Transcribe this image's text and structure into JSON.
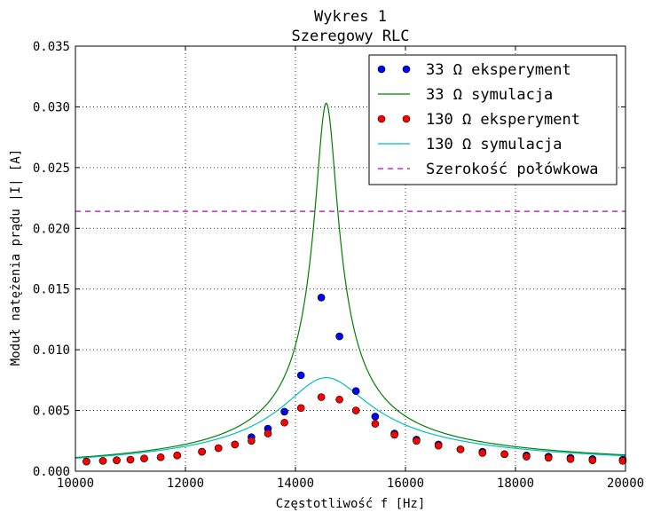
{
  "chart_data": {
    "type": "line",
    "title": "Wykres 1",
    "subtitle": "Szeregowy RLC",
    "xlabel": "Częstotliwość f [Hz]",
    "ylabel": "Moduł natężenia prądu |I| [A]",
    "xlim": [
      10000,
      20000
    ],
    "ylim": [
      0,
      0.035
    ],
    "x_ticks": [
      10000,
      12000,
      14000,
      16000,
      18000,
      20000
    ],
    "x_tick_labels": [
      "10000",
      "12000",
      "14000",
      "16000",
      "18000",
      "20000"
    ],
    "y_ticks": [
      0,
      0.005,
      0.01,
      0.015,
      0.02,
      0.025,
      0.03,
      0.035
    ],
    "y_tick_labels": [
      "0.000",
      "0.005",
      "0.010",
      "0.015",
      "0.020",
      "0.025",
      "0.030",
      "0.035"
    ],
    "grid": true,
    "legend_position": "top-right",
    "colors": {
      "exp33": "#0000ff",
      "sim33": "#008000",
      "exp130": "#ff0000",
      "sim130": "#00bfbf",
      "half": "#bf00bf"
    },
    "series": [
      {
        "name": "33 Ω eksperyment",
        "kind": "scatter",
        "points": [
          [
            10200,
            0.0008
          ],
          [
            10500,
            0.00085
          ],
          [
            10750,
            0.0009
          ],
          [
            11000,
            0.00095
          ],
          [
            11250,
            0.00105
          ],
          [
            11550,
            0.00115
          ],
          [
            11850,
            0.0013
          ],
          [
            12300,
            0.0016
          ],
          [
            12600,
            0.0019
          ],
          [
            12900,
            0.0022
          ],
          [
            13200,
            0.0028
          ],
          [
            13500,
            0.0035
          ],
          [
            13800,
            0.0049
          ],
          [
            14100,
            0.0079
          ],
          [
            14470,
            0.0143
          ],
          [
            14800,
            0.0111
          ],
          [
            15100,
            0.0066
          ],
          [
            15450,
            0.0045
          ],
          [
            15800,
            0.0031
          ],
          [
            16200,
            0.0026
          ],
          [
            16600,
            0.0022
          ],
          [
            17000,
            0.0018
          ],
          [
            17400,
            0.0016
          ],
          [
            17800,
            0.0014
          ],
          [
            18200,
            0.0013
          ],
          [
            18600,
            0.0012
          ],
          [
            19000,
            0.0011
          ],
          [
            19400,
            0.001
          ],
          [
            19950,
            0.00095
          ]
        ]
      },
      {
        "name": "33 Ω symulacja",
        "kind": "line",
        "f0": 14560,
        "peak": 0.0303,
        "q": 35
      },
      {
        "name": "130 Ω eksperyment",
        "kind": "scatter",
        "points": [
          [
            10200,
            0.0008
          ],
          [
            10500,
            0.00085
          ],
          [
            10750,
            0.0009
          ],
          [
            11000,
            0.00095
          ],
          [
            11250,
            0.00105
          ],
          [
            11550,
            0.00115
          ],
          [
            11850,
            0.0013
          ],
          [
            12300,
            0.0016
          ],
          [
            12600,
            0.0019
          ],
          [
            12900,
            0.0022
          ],
          [
            13200,
            0.0025
          ],
          [
            13500,
            0.0031
          ],
          [
            13800,
            0.004
          ],
          [
            14100,
            0.0052
          ],
          [
            14470,
            0.0061
          ],
          [
            14800,
            0.0059
          ],
          [
            15100,
            0.005
          ],
          [
            15450,
            0.0039
          ],
          [
            15800,
            0.003
          ],
          [
            16200,
            0.0025
          ],
          [
            16600,
            0.0021
          ],
          [
            17000,
            0.0018
          ],
          [
            17400,
            0.0015
          ],
          [
            17800,
            0.0014
          ],
          [
            18200,
            0.0012
          ],
          [
            18600,
            0.0011
          ],
          [
            19000,
            0.001
          ],
          [
            19400,
            0.0009
          ],
          [
            19950,
            0.00085
          ]
        ]
      },
      {
        "name": "130 Ω symulacja",
        "kind": "line",
        "f0": 14560,
        "peak": 0.0077,
        "q": 9.3
      },
      {
        "name": "Szerokość połówkowa",
        "kind": "hline",
        "y": 0.0214
      }
    ]
  }
}
